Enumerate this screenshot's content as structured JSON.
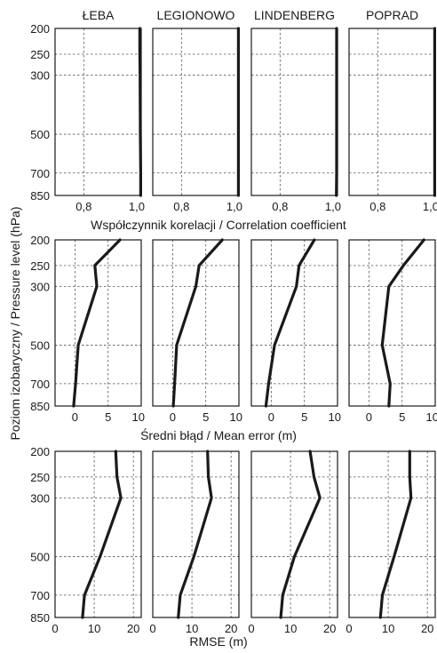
{
  "chart_data": {
    "type": "line",
    "ylabel": "Poziom izobaryczny / Pressure level (hPa)",
    "stations": [
      "ŁEBA",
      "LEGIONOWO",
      "LINDENBERG",
      "POPRAD"
    ],
    "pressure_levels": [
      200,
      250,
      300,
      500,
      700,
      850
    ],
    "yaxis": {
      "reversed": true,
      "scale": "log",
      "range": [
        200,
        850
      ],
      "ticks": [
        "200",
        "250",
        "300",
        "500",
        "700",
        "850"
      ]
    },
    "grid": true,
    "rows": [
      {
        "xlabel": "Współczynnik korelacji / Correlation coefficient",
        "xlim": [
          0.7,
          1.0
        ],
        "xticks": [
          0.8,
          1.0
        ],
        "xtick_labels": [
          "0,8",
          "1,0"
        ],
        "series": [
          {
            "station": "ŁEBA",
            "values": [
              0.995,
              0.995,
              0.996,
              0.997,
              0.998,
              0.998
            ]
          },
          {
            "station": "LEGIONOWO",
            "values": [
              0.998,
              0.998,
              0.998,
              0.998,
              0.998,
              0.998
            ]
          },
          {
            "station": "LINDENBERG",
            "values": [
              0.997,
              0.997,
              0.997,
              0.997,
              0.997,
              0.996
            ]
          },
          {
            "station": "POPRAD",
            "values": [
              0.998,
              0.998,
              0.998,
              0.998,
              0.998,
              0.998
            ]
          }
        ]
      },
      {
        "xlabel": "Średni błąd / Mean error (m)",
        "xlim": [
          -3,
          10
        ],
        "xticks": [
          0,
          5,
          10
        ],
        "xtick_labels": [
          "0",
          "5",
          "10"
        ],
        "series": [
          {
            "station": "ŁEBA",
            "values": [
              6.8,
              3.0,
              3.3,
              0.5,
              0.1,
              -0.2
            ]
          },
          {
            "station": "LEGIONOWO",
            "values": [
              7.5,
              4.0,
              3.5,
              0.6,
              0.3,
              0.1
            ]
          },
          {
            "station": "LINDENBERG",
            "values": [
              6.5,
              4.2,
              3.8,
              0.5,
              -0.4,
              -0.8
            ]
          },
          {
            "station": "POPRAD",
            "values": [
              8.3,
              5.2,
              3.0,
              2.0,
              3.2,
              3.0
            ]
          }
        ]
      },
      {
        "xlabel": "RMSE (m)",
        "xlim": [
          0,
          22
        ],
        "xticks": [
          0,
          10,
          20
        ],
        "xtick_labels": [
          "0",
          "10",
          "20"
        ],
        "series": [
          {
            "station": "ŁEBA",
            "values": [
              15.5,
              15.8,
              16.8,
              11.5,
              7.5,
              7.0
            ]
          },
          {
            "station": "LEGIONOWO",
            "values": [
              14.0,
              14.2,
              15.0,
              10.5,
              7.0,
              6.5
            ]
          },
          {
            "station": "LINDENBERG",
            "values": [
              15.0,
              16.0,
              17.5,
              11.0,
              8.0,
              7.5
            ]
          },
          {
            "station": "POPRAD",
            "values": [
              15.5,
              15.5,
              15.8,
              11.5,
              8.5,
              8.0
            ]
          }
        ]
      }
    ]
  }
}
